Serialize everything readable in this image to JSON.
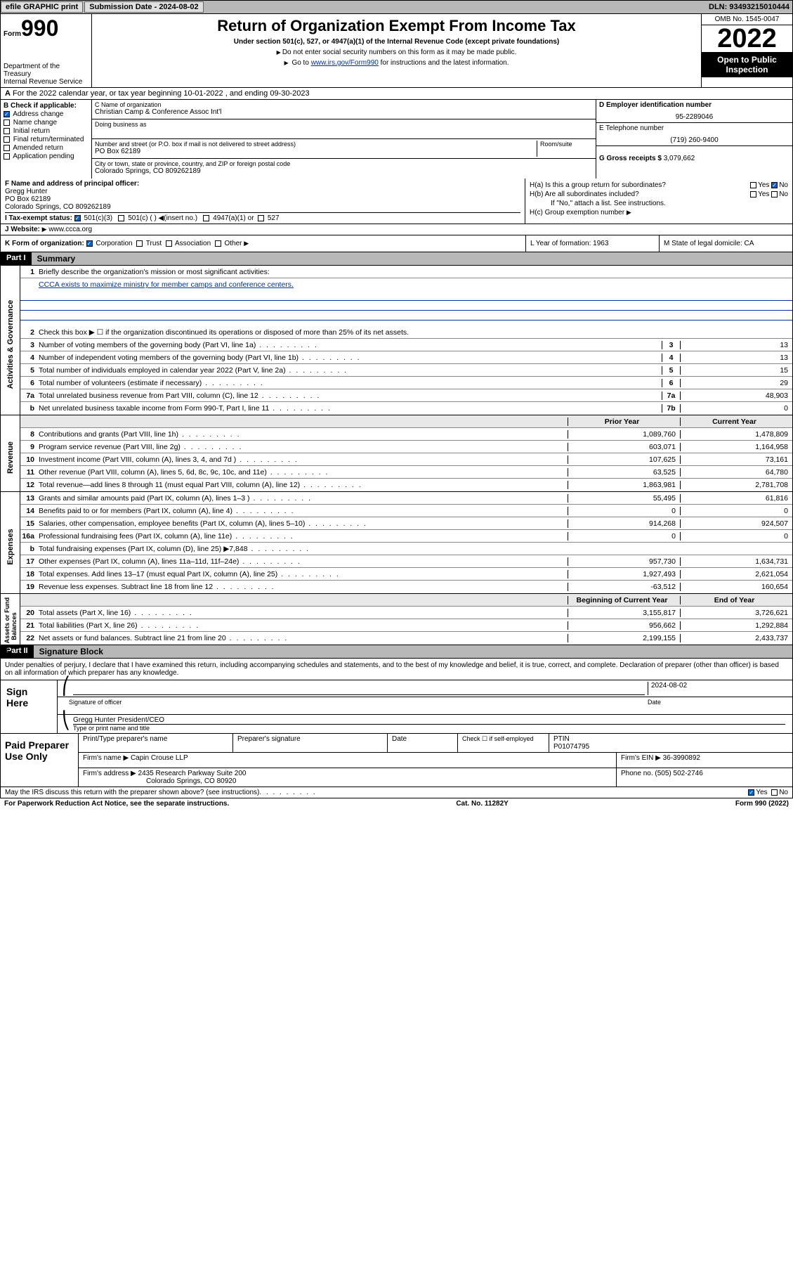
{
  "topbar": {
    "efile": "efile GRAPHIC print",
    "submission": "Submission Date - 2024-08-02",
    "dln": "DLN: 93493215010444"
  },
  "header": {
    "form": "Form",
    "num": "990",
    "dept": "Department of the Treasury",
    "irs": "Internal Revenue Service",
    "title": "Return of Organization Exempt From Income Tax",
    "sub": "Under section 501(c), 527, or 4947(a)(1) of the Internal Revenue Code (except private foundations)",
    "note1": "Do not enter social security numbers on this form as it may be made public.",
    "note2_pre": "Go to ",
    "note2_link": "www.irs.gov/Form990",
    "note2_post": " for instructions and the latest information.",
    "omb": "OMB No. 1545-0047",
    "year": "2022",
    "open": "Open to Public Inspection"
  },
  "row_a": "For the 2022 calendar year, or tax year beginning 10-01-2022     , and ending 09-30-2023",
  "box_b": {
    "label": "B Check if applicable:",
    "items": [
      "Address change",
      "Name change",
      "Initial return",
      "Final return/terminated",
      "Amended return",
      "Application pending"
    ],
    "checked": [
      true,
      false,
      false,
      false,
      false,
      false
    ]
  },
  "box_c": {
    "name_label": "C Name of organization",
    "name": "Christian Camp & Conference Assoc Int'l",
    "dba_label": "Doing business as",
    "addr_label": "Number and street (or P.O. box if mail is not delivered to street address)",
    "room_label": "Room/suite",
    "addr": "PO Box 62189",
    "city_label": "City or town, state or province, country, and ZIP or foreign postal code",
    "city": "Colorado Springs, CO  809262189"
  },
  "box_d": {
    "ein_label": "D Employer identification number",
    "ein": "95-2289046",
    "tel_label": "E Telephone number",
    "tel": "(719) 260-9400",
    "gross_label": "G Gross receipts $",
    "gross": "3,079,662"
  },
  "box_f": {
    "label": "F  Name and address of principal officer:",
    "name": "Gregg Hunter",
    "addr": "PO Box 62189",
    "city": "Colorado Springs, CO  809262189"
  },
  "box_h": {
    "a": "H(a)  Is this a group return for subordinates?",
    "b": "H(b)  Are all subordinates included?",
    "b_note": "If \"No,\" attach a list. See instructions.",
    "c": "H(c)  Group exemption number"
  },
  "row_i": {
    "label": "I     Tax-exempt status:",
    "opts": [
      "501(c)(3)",
      "501(c) (  )  ◀(insert no.)",
      "4947(a)(1) or",
      "527"
    ]
  },
  "row_j": {
    "label": "J    Website:",
    "val": "www.ccca.org"
  },
  "row_k": {
    "label": "K Form of organization:",
    "opts": [
      "Corporation",
      "Trust",
      "Association",
      "Other"
    ],
    "l": "L Year of formation: 1963",
    "m": "M State of legal domicile: CA"
  },
  "parts": {
    "p1": "Part I",
    "p1_title": "Summary",
    "p2": "Part II",
    "p2_title": "Signature Block"
  },
  "summary": {
    "q1": "Briefly describe the organization's mission or most significant activities:",
    "mission": "CCCA exists to maximize ministry for member camps and conference centers.",
    "q2": "Check this box ▶ ☐  if the organization discontinued its operations or disposed of more than 25% of its net assets.",
    "q3": "Number of voting members of the governing body (Part VI, line 1a)",
    "q4": "Number of independent voting members of the governing body (Part VI, line 1b)",
    "q5": "Total number of individuals employed in calendar year 2022 (Part V, line 2a)",
    "q6": "Total number of volunteers (estimate if necessary)",
    "q7a": "Total unrelated business revenue from Part VIII, column (C), line 12",
    "q7b": "Net unrelated business taxable income from Form 990-T, Part I, line 11",
    "v3": "13",
    "v4": "13",
    "v5": "15",
    "v6": "29",
    "v7a": "48,903",
    "v7b": "0",
    "hdr_prior": "Prior Year",
    "hdr_curr": "Current Year",
    "hdr_begin": "Beginning of Current Year",
    "hdr_end": "End of Year",
    "rows": [
      {
        "n": "8",
        "d": "Contributions and grants (Part VIII, line 1h)",
        "p": "1,089,760",
        "c": "1,478,809"
      },
      {
        "n": "9",
        "d": "Program service revenue (Part VIII, line 2g)",
        "p": "603,071",
        "c": "1,164,958"
      },
      {
        "n": "10",
        "d": "Investment income (Part VIII, column (A), lines 3, 4, and 7d )",
        "p": "107,625",
        "c": "73,161"
      },
      {
        "n": "11",
        "d": "Other revenue (Part VIII, column (A), lines 5, 6d, 8c, 9c, 10c, and 11e)",
        "p": "63,525",
        "c": "64,780"
      },
      {
        "n": "12",
        "d": "Total revenue—add lines 8 through 11 (must equal Part VIII, column (A), line 12)",
        "p": "1,863,981",
        "c": "2,781,708"
      },
      {
        "n": "13",
        "d": "Grants and similar amounts paid (Part IX, column (A), lines 1–3 )",
        "p": "55,495",
        "c": "61,816"
      },
      {
        "n": "14",
        "d": "Benefits paid to or for members (Part IX, column (A), line 4)",
        "p": "0",
        "c": "0"
      },
      {
        "n": "15",
        "d": "Salaries, other compensation, employee benefits (Part IX, column (A), lines 5–10)",
        "p": "914,268",
        "c": "924,507"
      },
      {
        "n": "16a",
        "d": "Professional fundraising fees (Part IX, column (A), line 11e)",
        "p": "0",
        "c": "0"
      },
      {
        "n": "b",
        "d": "Total fundraising expenses (Part IX, column (D), line 25) ▶7,848",
        "p": "",
        "c": ""
      },
      {
        "n": "17",
        "d": "Other expenses (Part IX, column (A), lines 11a–11d, 11f–24e)",
        "p": "957,730",
        "c": "1,634,731"
      },
      {
        "n": "18",
        "d": "Total expenses. Add lines 13–17 (must equal Part IX, column (A), line 25)",
        "p": "1,927,493",
        "c": "2,621,054"
      },
      {
        "n": "19",
        "d": "Revenue less expenses. Subtract line 18 from line 12",
        "p": "-63,512",
        "c": "160,654"
      },
      {
        "n": "20",
        "d": "Total assets (Part X, line 16)",
        "p": "3,155,817",
        "c": "3,726,621"
      },
      {
        "n": "21",
        "d": "Total liabilities (Part X, line 26)",
        "p": "956,662",
        "c": "1,292,884"
      },
      {
        "n": "22",
        "d": "Net assets or fund balances. Subtract line 21 from line 20",
        "p": "2,199,155",
        "c": "2,433,737"
      }
    ]
  },
  "vert": {
    "gov": "Activities & Governance",
    "rev": "Revenue",
    "exp": "Expenses",
    "net": "Net Assets or Fund Balances"
  },
  "sig": {
    "text": "Under penalties of perjury, I declare that I have examined this return, including accompanying schedules and statements, and to the best of my knowledge and belief, it is true, correct, and complete. Declaration of preparer (other than officer) is based on all information of which preparer has any knowledge.",
    "here": "Sign Here",
    "sig_label": "Signature of officer",
    "date_label": "Date",
    "date": "2024-08-02",
    "name": "Gregg Hunter  President/CEO",
    "name_label": "Type or print name and title"
  },
  "paid": {
    "title": "Paid Preparer Use Only",
    "h1": "Print/Type preparer's name",
    "h2": "Preparer's signature",
    "h3": "Date",
    "h4_chk": "Check ☐ if self-employed",
    "h4_ptin": "PTIN",
    "ptin": "P01074795",
    "firm_label": "Firm's name     ▶",
    "firm": "Capin Crouse LLP",
    "ein_label": "Firm's EIN ▶",
    "ein": "36-3990892",
    "addr_label": "Firm's address ▶",
    "addr1": "2435 Research Parkway Suite 200",
    "addr2": "Colorado Springs, CO  80920",
    "phone_label": "Phone no.",
    "phone": "(505) 502-2746"
  },
  "footer": {
    "discuss": "May the IRS discuss this return with the preparer shown above? (see instructions)",
    "paperwork": "For Paperwork Reduction Act Notice, see the separate instructions.",
    "cat": "Cat. No. 11282Y",
    "form": "Form 990 (2022)"
  }
}
